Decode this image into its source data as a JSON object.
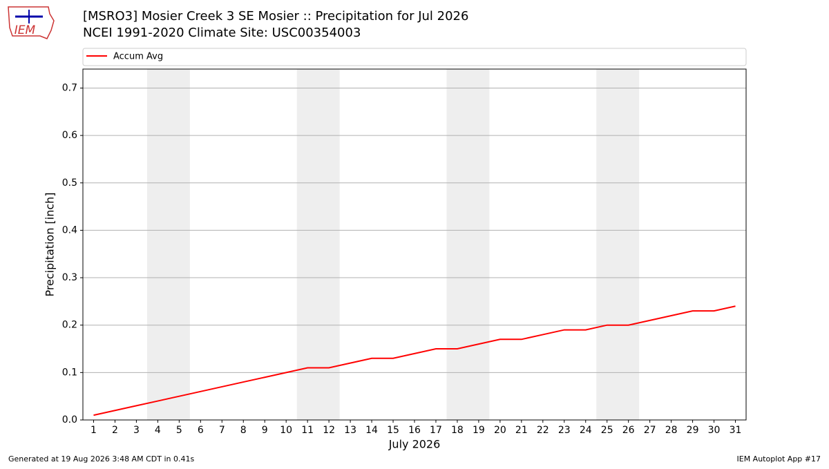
{
  "logo_text": "IEM",
  "chart_data": {
    "type": "line",
    "title": "[MSRO3] Mosier Creek 3 SE Mosier :: Precipitation for Jul 2026",
    "subtitle": "NCEI 1991-2020 Climate Site: USC00354003",
    "x_label": "July 2026",
    "y_label": "Precipitation [inch]",
    "x": [
      1,
      2,
      3,
      4,
      5,
      6,
      7,
      8,
      9,
      10,
      11,
      12,
      13,
      14,
      15,
      16,
      17,
      18,
      19,
      20,
      21,
      22,
      23,
      24,
      25,
      26,
      27,
      28,
      29,
      30,
      31
    ],
    "series": [
      {
        "name": "Accum Avg",
        "color": "#ff0000",
        "values": [
          0.01,
          0.02,
          0.03,
          0.04,
          0.05,
          0.06,
          0.07,
          0.08,
          0.09,
          0.1,
          0.11,
          0.11,
          0.12,
          0.13,
          0.13,
          0.14,
          0.15,
          0.15,
          0.16,
          0.17,
          0.17,
          0.18,
          0.19,
          0.19,
          0.2,
          0.2,
          0.21,
          0.22,
          0.23,
          0.23,
          0.24
        ]
      }
    ],
    "shaded_x_ranges": [
      [
        3.5,
        5.5
      ],
      [
        10.5,
        12.5
      ],
      [
        17.5,
        19.5
      ],
      [
        24.5,
        26.5
      ]
    ],
    "shade_color": "#eeeeee",
    "xlim": [
      0.5,
      31.5
    ],
    "xticks": [
      1,
      2,
      3,
      4,
      5,
      6,
      7,
      8,
      9,
      10,
      11,
      12,
      13,
      14,
      15,
      16,
      17,
      18,
      19,
      20,
      21,
      22,
      23,
      24,
      25,
      26,
      27,
      28,
      29,
      30,
      31
    ],
    "ylim": [
      0,
      0.74
    ],
    "yticks": [
      {
        "value": 0,
        "label": "0.0"
      },
      0.1,
      0.2,
      0.3,
      0.4,
      0.5,
      0.6,
      0.7
    ],
    "grid": true,
    "legend_position": "top"
  },
  "footer": {
    "left": "Generated at 19 Aug 2026 3:48 AM CDT in 0.41s",
    "right": "IEM Autoplot App #17"
  }
}
